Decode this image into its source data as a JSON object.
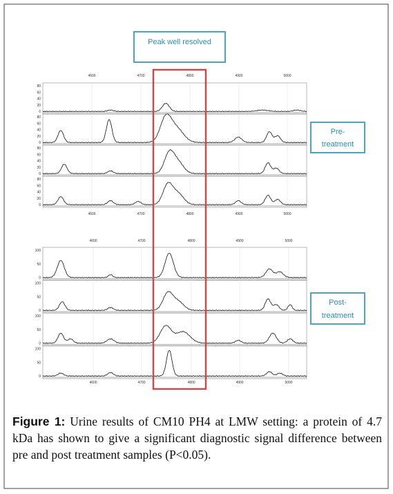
{
  "annotations": {
    "peak": "Peak well resolved",
    "pre": [
      "Pre-",
      "treatment"
    ],
    "post": [
      "Post-",
      "treatment"
    ]
  },
  "groups": [
    {
      "top_labels": [
        "4600",
        "4700",
        "4800",
        "4900",
        "5000"
      ],
      "bottom_labels": [
        "4600",
        "4700",
        "4800",
        "4900",
        "5000"
      ],
      "strip_labels": [
        "80",
        "60",
        "40",
        "20",
        "0"
      ]
    },
    {
      "top_labels": [
        "4600",
        "4700",
        "4800",
        "4900",
        "5000"
      ],
      "bottom_labels": [
        "4600",
        "4700",
        "4800",
        "4900",
        "5000"
      ],
      "strip_labels": [
        "100",
        "50",
        "0"
      ]
    }
  ],
  "caption": {
    "label": "Figure 1:",
    "text": "Urine results of CM10 PH4 at LMW setting: a protein of 4.7 kDa has shown to give a significant diagnostic signal difference between pre and post treatment samples (P<0.05)."
  }
}
